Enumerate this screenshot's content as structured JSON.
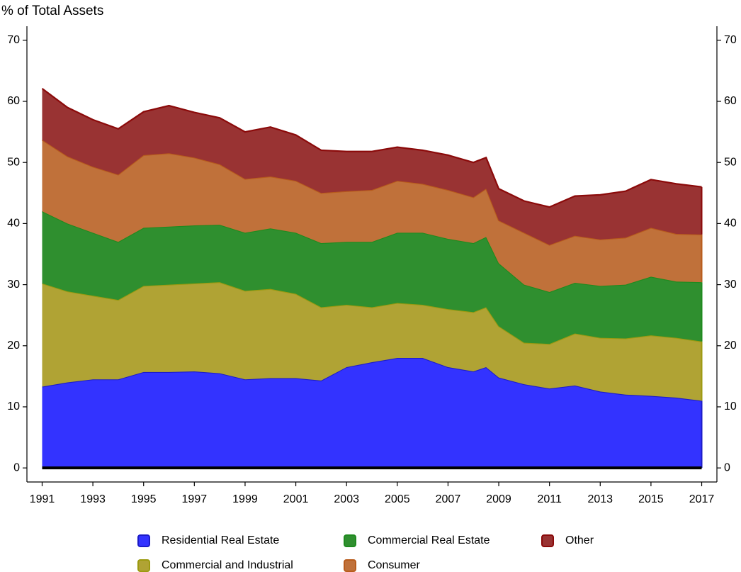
{
  "chart_data": {
    "type": "stacked_area",
    "y_label": "% of Total Assets",
    "x": [
      1991,
      1992,
      1993,
      1994,
      1995,
      1996,
      1997,
      1998,
      1999,
      2000,
      2001,
      2002,
      2003,
      2004,
      2005,
      2006,
      2007,
      2008,
      2008.5,
      2009,
      2010,
      2011,
      2012,
      2013,
      2014,
      2015,
      2016,
      2017
    ],
    "series": [
      {
        "name": "Residential Real Estate",
        "color": "#3333ff",
        "stroke": "#1c1cc8",
        "values": [
          13.3,
          14.0,
          14.5,
          14.5,
          15.7,
          15.7,
          15.8,
          15.5,
          14.5,
          14.7,
          14.7,
          14.3,
          16.5,
          17.3,
          18.0,
          18.0,
          16.5,
          15.8,
          16.5,
          14.8,
          13.7,
          13.0,
          13.5,
          12.5,
          12.0,
          11.8,
          11.5,
          11.0
        ]
      },
      {
        "name": "Commercial and Industrial",
        "color": "#b0a334",
        "stroke": "#9c9a10",
        "values": [
          16.9,
          14.9,
          13.7,
          13.0,
          14.1,
          14.3,
          14.4,
          14.9,
          14.5,
          14.6,
          13.8,
          12.0,
          10.2,
          9.0,
          9.0,
          8.7,
          9.5,
          9.7,
          9.8,
          8.4,
          6.8,
          7.3,
          8.5,
          8.8,
          9.2,
          9.9,
          9.8,
          9.7
        ]
      },
      {
        "name": "Commercial Real Estate",
        "color": "#2f8f2f",
        "stroke": "#1e8a1e",
        "values": [
          11.8,
          11.1,
          10.3,
          9.5,
          9.5,
          9.5,
          9.5,
          9.4,
          9.5,
          9.9,
          10.0,
          10.5,
          10.3,
          10.7,
          11.5,
          11.8,
          11.5,
          11.3,
          11.5,
          10.3,
          9.5,
          8.5,
          8.3,
          8.5,
          8.8,
          9.6,
          9.2,
          9.7
        ]
      },
      {
        "name": "Consumer",
        "color": "#c0713a",
        "stroke": "#b85c1c",
        "values": [
          11.7,
          11.0,
          10.8,
          11.0,
          11.9,
          12.0,
          11.1,
          9.9,
          8.8,
          8.5,
          8.5,
          8.2,
          8.3,
          8.5,
          8.5,
          8.0,
          8.0,
          7.5,
          7.9,
          7.0,
          8.5,
          7.7,
          7.7,
          7.6,
          7.7,
          8.0,
          7.8,
          7.8
        ]
      },
      {
        "name": "Other",
        "color": "#993333",
        "stroke": "#8b0a0a",
        "values": [
          8.4,
          8.0,
          7.7,
          7.5,
          7.1,
          7.8,
          7.4,
          7.6,
          7.7,
          8.1,
          7.5,
          7.0,
          6.5,
          6.3,
          5.5,
          5.5,
          5.7,
          5.7,
          5.1,
          5.2,
          5.2,
          6.2,
          6.5,
          7.3,
          7.6,
          7.9,
          8.2,
          7.8
        ]
      }
    ],
    "xlim": [
      1990.4,
      2017.6
    ],
    "xticks": [
      1991,
      1993,
      1995,
      1997,
      1999,
      2001,
      2003,
      2005,
      2007,
      2009,
      2011,
      2013,
      2015,
      2017
    ],
    "ylim": [
      -2.3,
      72.3
    ],
    "yticks": [
      0,
      10,
      20,
      30,
      40,
      50,
      60,
      70
    ],
    "right_axis": true,
    "legend": "bottom"
  }
}
